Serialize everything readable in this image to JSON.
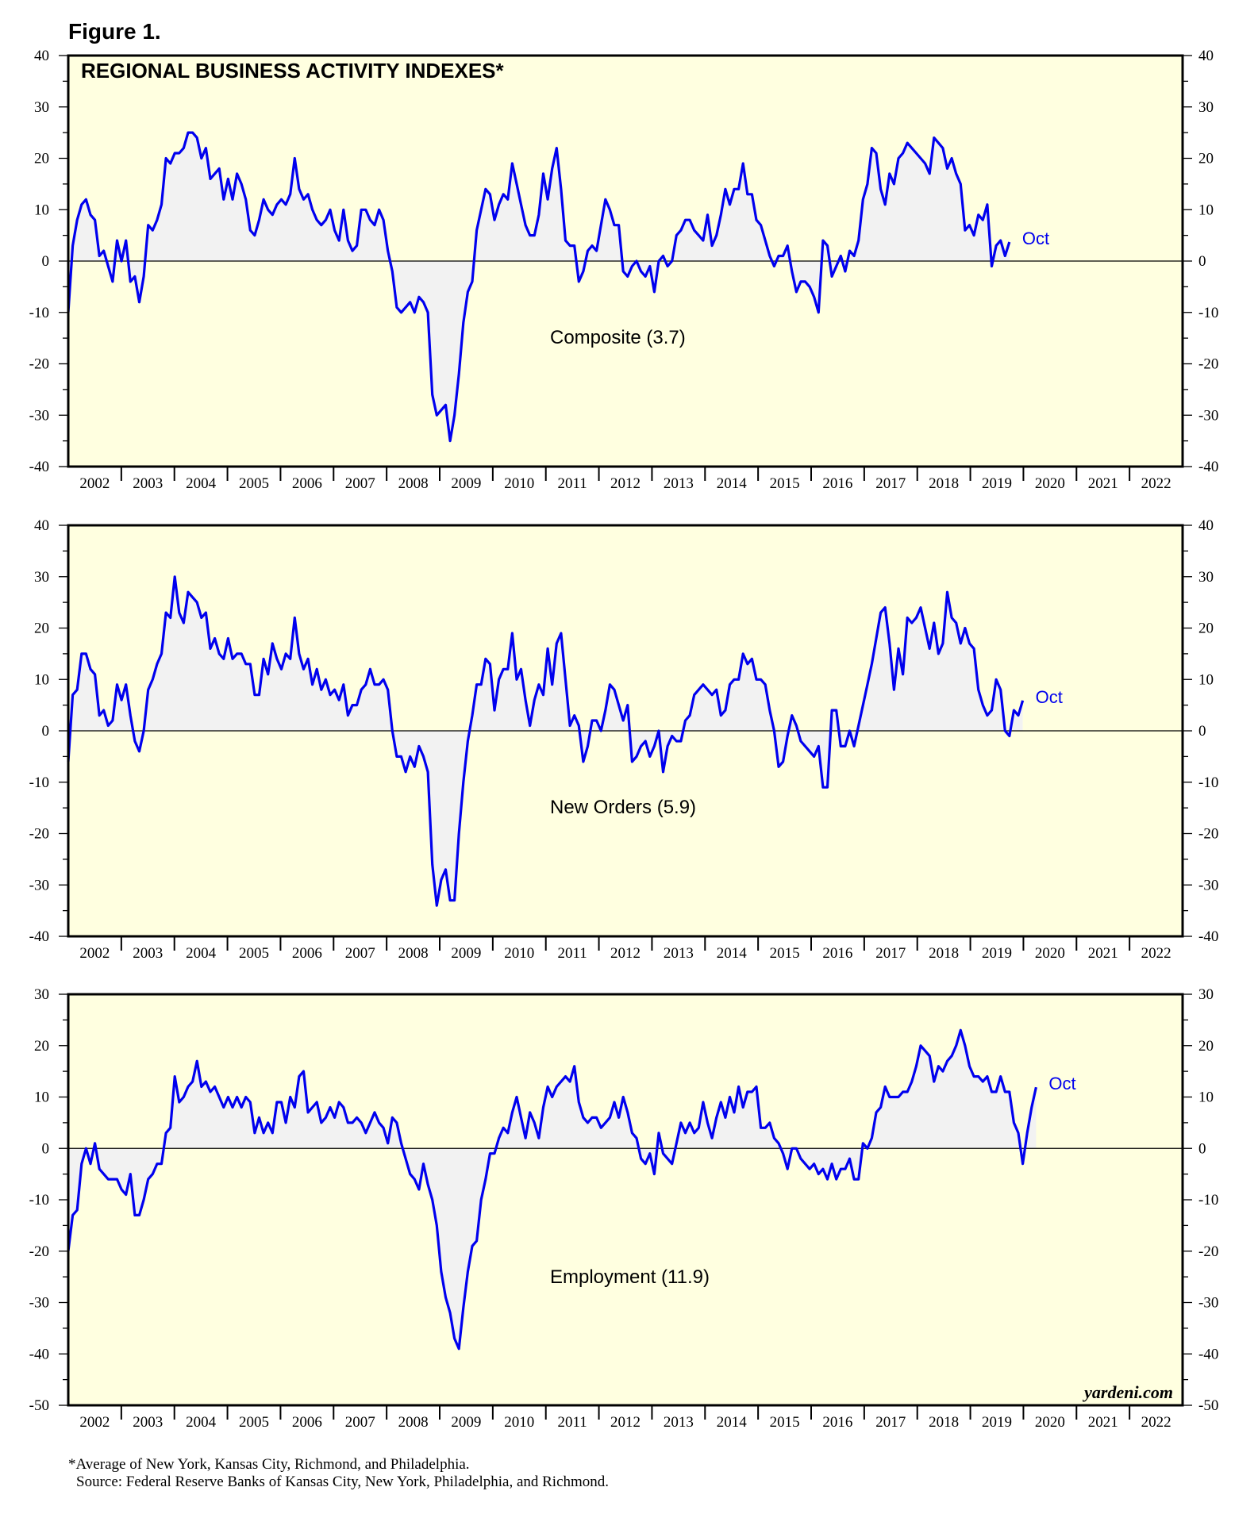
{
  "figure_label": "Figure 1.",
  "title": "REGIONAL BUSINESS ACTIVITY INDEXES*",
  "watermark": "yardeni.com",
  "footnotes": [
    "*Average of New York, Kansas City, Richmond, and Philadelphia.",
    "Source: Federal Reserve Banks of Kansas City, New York, Philadelphia, and Richmond."
  ],
  "colors": {
    "background": "#ffffe0",
    "line": "#0000ee",
    "fill": "#f2f2f2",
    "axis": "#000000"
  },
  "chart_data": [
    {
      "type": "area",
      "name": "Composite (3.7)",
      "end_label": "Oct",
      "x_start": "2002-01",
      "x_step": "month",
      "xlim": [
        "2002-01",
        "2022-12"
      ],
      "ylim": [
        -40,
        40
      ],
      "y_ticks": [
        -40,
        -30,
        -20,
        -10,
        0,
        10,
        20,
        30,
        40
      ],
      "x_tick_labels": [
        "2002",
        "2003",
        "2004",
        "2005",
        "2006",
        "2007",
        "2008",
        "2009",
        "2010",
        "2011",
        "2012",
        "2013",
        "2014",
        "2015",
        "2016",
        "2017",
        "2018",
        "2019",
        "2020",
        "2021",
        "2022"
      ],
      "values": [
        -10,
        3,
        8,
        11,
        12,
        9,
        8,
        1,
        2,
        -1,
        -4,
        4,
        0,
        4,
        -4,
        -3,
        -8,
        -3,
        7,
        6,
        8,
        11,
        20,
        19,
        21,
        21,
        22,
        25,
        25,
        24,
        20,
        22,
        16,
        17,
        18,
        12,
        16,
        12,
        17,
        15,
        12,
        6,
        5,
        8,
        12,
        10,
        9,
        11,
        12,
        11,
        13,
        20,
        14,
        12,
        13,
        10,
        8,
        7,
        8,
        10,
        6,
        4,
        10,
        4,
        2,
        3,
        10,
        10,
        8,
        7,
        10,
        8,
        2,
        -2,
        -9,
        -10,
        -9,
        -8,
        -10,
        -7,
        -8,
        -10,
        -26,
        -30,
        -29,
        -28,
        -35,
        -30,
        -22,
        -12,
        -6,
        -4,
        6,
        10,
        14,
        13,
        8,
        11,
        13,
        12,
        19,
        15,
        11,
        7,
        5,
        5,
        9,
        17,
        12,
        18,
        22,
        14,
        4,
        3,
        3,
        -4,
        -2,
        2,
        3,
        2,
        7,
        12,
        10,
        7,
        7,
        -2,
        -3,
        -1,
        0,
        -2,
        -3,
        -1,
        -6,
        0,
        1,
        -1,
        0,
        5,
        6,
        8,
        8,
        6,
        5,
        4,
        9,
        3,
        5,
        9,
        14,
        11,
        14,
        14,
        19,
        13,
        13,
        8,
        7,
        4,
        1,
        -1,
        1,
        1,
        3,
        -2,
        -6,
        -4,
        -4,
        -5,
        -7,
        -10,
        4,
        3,
        -3,
        -1,
        1,
        -2,
        2,
        1,
        4,
        12,
        15,
        22,
        21,
        14,
        11,
        17,
        15,
        20,
        21,
        23,
        22,
        21,
        20,
        19,
        17,
        24,
        23,
        22,
        18,
        20,
        17,
        15,
        6,
        7,
        5,
        9,
        8,
        11,
        -1,
        3,
        4,
        1,
        3.7
      ]
    },
    {
      "type": "area",
      "name": "New Orders (5.9)",
      "end_label": "Oct",
      "x_start": "2002-01",
      "x_step": "month",
      "xlim": [
        "2002-01",
        "2022-12"
      ],
      "ylim": [
        -40,
        40
      ],
      "y_ticks": [
        -40,
        -30,
        -20,
        -10,
        0,
        10,
        20,
        30,
        40
      ],
      "x_tick_labels": [
        "2002",
        "2003",
        "2004",
        "2005",
        "2006",
        "2007",
        "2008",
        "2009",
        "2010",
        "2011",
        "2012",
        "2013",
        "2014",
        "2015",
        "2016",
        "2017",
        "2018",
        "2019",
        "2020",
        "2021",
        "2022"
      ],
      "values": [
        -6,
        7,
        8,
        15,
        15,
        12,
        11,
        3,
        4,
        1,
        2,
        9,
        6,
        9,
        3,
        -2,
        -4,
        0,
        8,
        10,
        13,
        15,
        23,
        22,
        30,
        23,
        21,
        27,
        26,
        25,
        22,
        23,
        16,
        18,
        15,
        14,
        18,
        14,
        15,
        15,
        13,
        13,
        7,
        7,
        14,
        11,
        17,
        14,
        12,
        15,
        14,
        22,
        15,
        12,
        14,
        9,
        12,
        8,
        10,
        7,
        8,
        6,
        9,
        3,
        5,
        5,
        8,
        9,
        12,
        9,
        9,
        10,
        8,
        0,
        -5,
        -5,
        -8,
        -5,
        -7,
        -3,
        -5,
        -8,
        -26,
        -34,
        -29,
        -27,
        -33,
        -33,
        -20,
        -10,
        -2,
        3,
        9,
        9,
        14,
        13,
        4,
        10,
        12,
        12,
        19,
        10,
        12,
        6,
        1,
        6,
        9,
        7,
        16,
        9,
        17,
        19,
        10,
        1,
        3,
        1,
        -6,
        -3,
        2,
        2,
        0,
        4,
        9,
        8,
        5,
        2,
        5,
        -6,
        -5,
        -3,
        -2,
        -5,
        -3,
        0,
        -8,
        -3,
        -1,
        -2,
        -2,
        2,
        3,
        7,
        8,
        9,
        8,
        7,
        8,
        3,
        4,
        9,
        10,
        10,
        15,
        13,
        14,
        10,
        10,
        9,
        4,
        0,
        -7,
        -6,
        -1,
        3,
        1,
        -2,
        -3,
        -4,
        -5,
        -3,
        -11,
        -11,
        4,
        4,
        -3,
        -3,
        0,
        -3,
        1,
        5,
        9,
        13,
        18,
        23,
        24,
        17,
        8,
        16,
        11,
        22,
        21,
        22,
        24,
        20,
        16,
        21,
        15,
        17,
        27,
        22,
        21,
        17,
        20,
        17,
        16,
        8,
        5,
        3,
        4,
        10,
        8,
        0,
        -1,
        4,
        3,
        5.9
      ]
    },
    {
      "type": "area",
      "name": "Employment (11.9)",
      "end_label": "Oct",
      "x_start": "2002-01",
      "x_step": "month",
      "xlim": [
        "2002-01",
        "2022-12"
      ],
      "ylim": [
        -50,
        30
      ],
      "y_ticks": [
        -50,
        -40,
        -30,
        -20,
        -10,
        0,
        10,
        20,
        30
      ],
      "x_tick_labels": [
        "2002",
        "2003",
        "2004",
        "2005",
        "2006",
        "2007",
        "2008",
        "2009",
        "2010",
        "2011",
        "2012",
        "2013",
        "2014",
        "2015",
        "2016",
        "2017",
        "2018",
        "2019",
        "2020",
        "2021",
        "2022"
      ],
      "values": [
        -20,
        -13,
        -12,
        -3,
        0,
        -3,
        1,
        -4,
        -5,
        -6,
        -6,
        -6,
        -8,
        -9,
        -5,
        -13,
        -13,
        -10,
        -6,
        -5,
        -3,
        -3,
        3,
        4,
        14,
        9,
        10,
        12,
        13,
        17,
        12,
        13,
        11,
        12,
        10,
        8,
        10,
        8,
        10,
        8,
        10,
        9,
        3,
        6,
        3,
        5,
        3,
        9,
        9,
        5,
        10,
        8,
        14,
        15,
        7,
        8,
        9,
        5,
        6,
        8,
        6,
        9,
        8,
        5,
        5,
        6,
        5,
        3,
        5,
        7,
        5,
        4,
        1,
        6,
        5,
        1,
        -2,
        -5,
        -6,
        -8,
        -3,
        -7,
        -10,
        -15,
        -24,
        -29,
        -32,
        -37,
        -39,
        -31,
        -24,
        -19,
        -18,
        -10,
        -6,
        -1,
        -1,
        2,
        4,
        3,
        7,
        10,
        6,
        2,
        7,
        5,
        2,
        8,
        12,
        10,
        12,
        13,
        14,
        13,
        16,
        9,
        6,
        5,
        6,
        6,
        4,
        5,
        6,
        9,
        6,
        10,
        7,
        3,
        2,
        -2,
        -3,
        -1,
        -5,
        3,
        -1,
        -2,
        -3,
        1,
        5,
        3,
        5,
        3,
        4,
        9,
        5,
        2,
        6,
        9,
        6,
        10,
        7,
        12,
        8,
        11,
        11,
        12,
        4,
        4,
        5,
        2,
        1,
        -1,
        -4,
        0,
        0,
        -2,
        -3,
        -4,
        -3,
        -5,
        -4,
        -6,
        -3,
        -6,
        -4,
        -4,
        -2,
        -6,
        -6,
        1,
        0,
        2,
        7,
        8,
        12,
        10,
        10,
        10,
        11,
        11,
        13,
        16,
        20,
        19,
        18,
        13,
        16,
        15,
        17,
        18,
        20,
        23,
        20,
        16,
        14,
        14,
        13,
        14,
        11,
        11,
        14,
        11,
        11,
        5,
        3,
        -3,
        3,
        8,
        11.9
      ]
    }
  ]
}
